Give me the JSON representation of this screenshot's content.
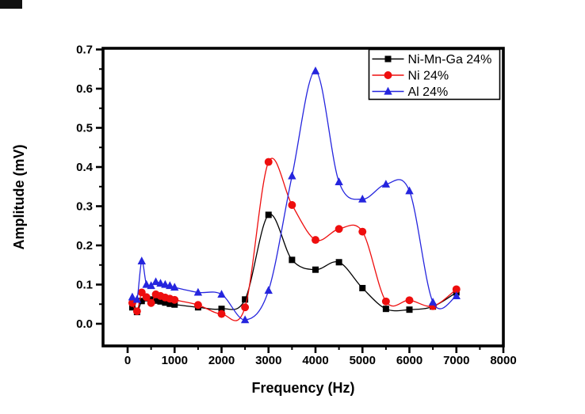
{
  "figure": {
    "background": "#ffffff",
    "plot_border_color": "#000000",
    "x_axis": {
      "label": "Frequency (Hz)",
      "min": 0,
      "max": 8000,
      "major_tick_step": 1000,
      "minor_tick_step": 500,
      "tick_labels": [
        "0",
        "1000",
        "2000",
        "3000",
        "4000",
        "5000",
        "6000",
        "7000",
        "8000"
      ]
    },
    "y_axis": {
      "label": "Amplitude (mV)",
      "min": 0.0,
      "max": 0.7,
      "major_tick_step": 0.1,
      "minor_tick_step": 0.05,
      "tick_labels": [
        "0.0",
        "0.1",
        "0.2",
        "0.3",
        "0.4",
        "0.5",
        "0.6",
        "0.7"
      ]
    },
    "legend": {
      "position": "top-right",
      "entries": [
        {
          "label": "Ni-Mn-Ga 24%",
          "color": "#000000",
          "marker": "square"
        },
        {
          "label": "Ni 24%",
          "color": "#ee0e0e",
          "marker": "circle"
        },
        {
          "label": "Al 24%",
          "color": "#2525de",
          "marker": "triangle"
        }
      ]
    }
  },
  "chart_data": {
    "type": "line",
    "title": "",
    "xlabel": "Frequency (Hz)",
    "ylabel": "Amplitude (mV)",
    "xlim": [
      0,
      8000
    ],
    "ylim": [
      0.0,
      0.7
    ],
    "grid": false,
    "legend_position": "top-right",
    "x": [
      100,
      200,
      300,
      400,
      500,
      600,
      700,
      800,
      900,
      1000,
      1500,
      2000,
      2500,
      3000,
      3500,
      4000,
      4500,
      5000,
      5500,
      6000,
      6500,
      7000
    ],
    "series": [
      {
        "name": "Ni-Mn-Ga 24%",
        "color": "#000000",
        "marker": "square",
        "values": [
          0.042,
          0.03,
          0.058,
          0.065,
          0.062,
          0.059,
          0.057,
          0.054,
          0.051,
          0.049,
          0.042,
          0.038,
          0.062,
          0.278,
          0.163,
          0.138,
          0.157,
          0.091,
          0.038,
          0.036,
          0.044,
          0.08
        ]
      },
      {
        "name": "Ni 24%",
        "color": "#ee0e0e",
        "marker": "circle",
        "values": [
          0.053,
          0.032,
          0.08,
          0.068,
          0.053,
          0.075,
          0.071,
          0.067,
          0.064,
          0.061,
          0.048,
          0.025,
          0.042,
          0.413,
          0.303,
          0.214,
          0.242,
          0.235,
          0.057,
          0.06,
          0.045,
          0.088
        ]
      },
      {
        "name": "Al 24%",
        "color": "#2525de",
        "marker": "triangle",
        "values": [
          0.068,
          0.062,
          0.16,
          0.1,
          0.097,
          0.107,
          0.103,
          0.1,
          0.097,
          0.093,
          0.08,
          0.075,
          0.01,
          0.085,
          0.377,
          0.645,
          0.362,
          0.318,
          0.356,
          0.339,
          0.055,
          0.071
        ]
      }
    ]
  }
}
